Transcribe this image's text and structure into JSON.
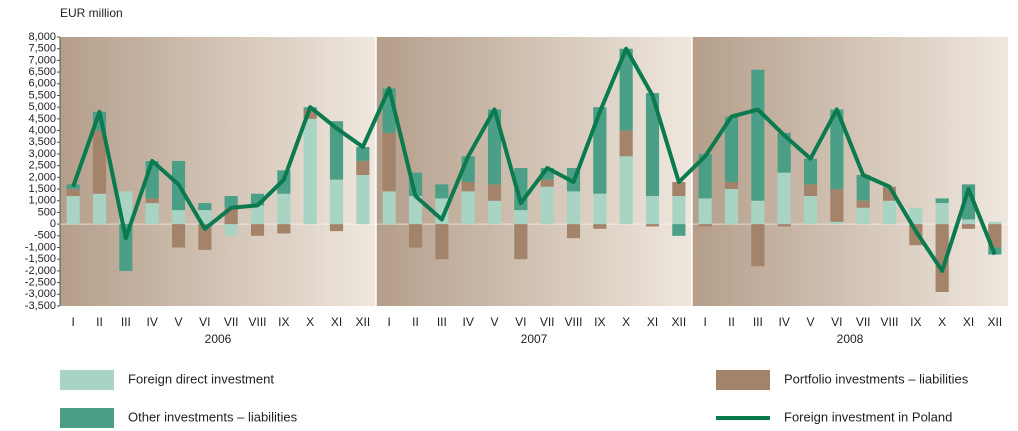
{
  "chart_data": {
    "type": "bar",
    "y_label": "EUR million",
    "categories": [
      "I",
      "II",
      "III",
      "IV",
      "V",
      "VI",
      "VII",
      "VIII",
      "IX",
      "X",
      "XI",
      "XII",
      "I",
      "II",
      "III",
      "IV",
      "V",
      "VI",
      "VII",
      "VIII",
      "IX",
      "X",
      "XI",
      "XII",
      "I",
      "II",
      "III",
      "IV",
      "V",
      "VI",
      "VII",
      "VIII",
      "IX",
      "X",
      "XI",
      "XII"
    ],
    "x_groups": [
      "2006",
      "2007",
      "2008"
    ],
    "ylim": [
      -3500,
      8000
    ],
    "yticks": [
      {
        "value": 8000,
        "label": "8,000"
      },
      {
        "value": 7500,
        "label": "7,500"
      },
      {
        "value": 7000,
        "label": "7,000"
      },
      {
        "value": 6500,
        "label": "6,500"
      },
      {
        "value": 6000,
        "label": "6,000"
      },
      {
        "value": 5500,
        "label": "5,500"
      },
      {
        "value": 5000,
        "label": "5,000"
      },
      {
        "value": 4500,
        "label": "4,500"
      },
      {
        "value": 4000,
        "label": "4,000"
      },
      {
        "value": 3500,
        "label": "3,500"
      },
      {
        "value": 3000,
        "label": "3,000"
      },
      {
        "value": 2500,
        "label": "2,500"
      },
      {
        "value": 2000,
        "label": "2,000"
      },
      {
        "value": 1500,
        "label": "1,500"
      },
      {
        "value": 1000,
        "label": "1,000"
      },
      500,
      0,
      -500,
      {
        "value": -1000,
        "label": "-1,000"
      },
      {
        "value": -1500,
        "label": "-1,500"
      },
      {
        "value": -2000,
        "label": "-2,000"
      },
      {
        "value": -2500,
        "label": "-2,500"
      },
      {
        "value": -3000,
        "label": "-3,000"
      },
      {
        "value": -3500,
        "label": "-3,500"
      }
    ],
    "stacked": true,
    "series": [
      {
        "name": "Foreign direct investment",
        "color": "#a9d4c4",
        "values": [
          1200,
          1300,
          1400,
          900,
          600,
          600,
          -500,
          800,
          1300,
          4500,
          1900,
          2100,
          1400,
          1200,
          1100,
          1400,
          1000,
          600,
          1600,
          1400,
          1300,
          2900,
          1200,
          1200,
          1100,
          1500,
          1000,
          2200,
          1200,
          100,
          700,
          1000,
          700,
          900,
          200,
          100
        ]
      },
      {
        "name": "Portfolio investments – liabilities",
        "color": "#a3836a",
        "values": [
          300,
          2700,
          0,
          200,
          -1000,
          -1100,
          700,
          -500,
          -400,
          400,
          -300,
          600,
          2500,
          -1000,
          -1500,
          400,
          700,
          -1500,
          300,
          -600,
          -200,
          1100,
          -100,
          600,
          -100,
          300,
          -1800,
          -100,
          500,
          1400,
          300,
          600,
          -900,
          -2900,
          -200,
          -1000
        ]
      },
      {
        "name": "Other investments – liabilities",
        "color": "#4b9f87",
        "values": [
          200,
          800,
          -2000,
          1600,
          2100,
          300,
          500,
          500,
          1000,
          100,
          2500,
          600,
          1900,
          1000,
          600,
          1100,
          3200,
          1800,
          500,
          1000,
          3700,
          3500,
          4400,
          -500,
          1900,
          2800,
          5600,
          1700,
          1100,
          3400,
          1100,
          0,
          0,
          200,
          1500,
          -300
        ]
      },
      {
        "name": "Foreign investment in Poland",
        "color": "#0b7a4f",
        "type": "line",
        "values": [
          1600,
          4800,
          -600,
          2700,
          1700,
          -200,
          700,
          800,
          1900,
          5000,
          4100,
          3300,
          5800,
          1200,
          200,
          2900,
          4900,
          900,
          2400,
          1800,
          4800,
          7500,
          5500,
          1800,
          2900,
          4600,
          4900,
          3800,
          2800,
          4900,
          2100,
          1600,
          -300,
          -2000,
          1500,
          -1300
        ]
      }
    ]
  }
}
